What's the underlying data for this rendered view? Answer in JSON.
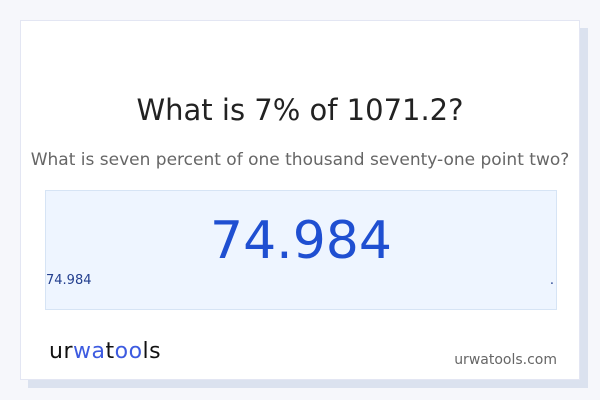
{
  "title": "What is 7% of 1071.2?",
  "subtitle": "What is seven percent of one thousand seventy-one point two?",
  "result": {
    "value": "74.984",
    "small_value": "74.984",
    "trailing": "."
  },
  "footer": {
    "logo": "urwatools",
    "domain": "urwatools.com"
  },
  "colors": {
    "accent": "#1f4fd1",
    "background": "#f6f7fb",
    "result_bg": "#eef5ff"
  }
}
